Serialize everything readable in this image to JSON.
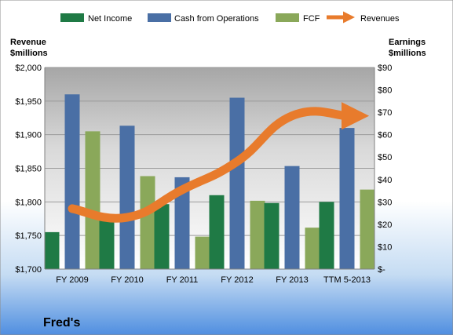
{
  "company": "Fred's",
  "chart_data": {
    "type": "bar",
    "categories": [
      "FY 2009",
      "FY 2010",
      "FY 2011",
      "FY 2012",
      "FY 2013",
      "TTM 5-2013"
    ],
    "series": [
      {
        "name": "Net Income",
        "axis": "right",
        "color": "#1f7a45",
        "values": [
          16.5,
          23,
          29,
          33,
          29.5,
          30
        ]
      },
      {
        "name": "Cash from Operations",
        "axis": "right",
        "color": "#4a6fa5",
        "values": [
          78,
          64,
          41,
          76.5,
          46,
          63
        ]
      },
      {
        "name": "FCF",
        "axis": "right",
        "color": "#8aa85a",
        "values": [
          61.5,
          41.5,
          14.5,
          30.5,
          18.5,
          35.5
        ]
      },
      {
        "name": "Revenues",
        "axis": "left",
        "type": "line",
        "color": "#e87b2c",
        "values": [
          1790,
          1777,
          1818,
          1860,
          1928,
          1928
        ]
      }
    ],
    "left_axis": {
      "label_line1": "Revenue",
      "label_line2": "$millions",
      "min": 1700,
      "max": 2000,
      "step": 50,
      "tick_labels": [
        "$1,700",
        "$1,750",
        "$1,800",
        "$1,850",
        "$1,900",
        "$1,950",
        "$2,000"
      ]
    },
    "right_axis": {
      "label_line1": "Earnings",
      "label_line2": "$millions",
      "min": 0,
      "max": 90,
      "step": 10,
      "tick_labels": [
        "$-",
        "$10",
        "$20",
        "$30",
        "$40",
        "$50",
        "$60",
        "$70",
        "$80",
        "$90"
      ]
    },
    "legend": {
      "placement": "top"
    },
    "grid": true
  }
}
